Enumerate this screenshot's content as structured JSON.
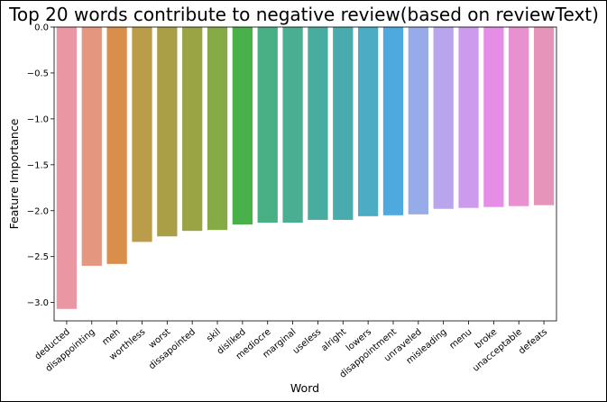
{
  "chart_data": {
    "type": "bar",
    "title": "Top 20 words contribute to negative review(based on reviewText)",
    "xlabel": "Word",
    "ylabel": "Feature Importance",
    "ylim": [
      -3.2,
      0.0
    ],
    "yticks": [
      0.0,
      -0.5,
      -1.0,
      -1.5,
      -2.0,
      -2.5,
      -3.0
    ],
    "ytick_labels": [
      "0.0",
      "−0.5",
      "−1.0",
      "−1.5",
      "−2.0",
      "−2.5",
      "−3.0"
    ],
    "grid": false,
    "categories": [
      "deducted",
      "disappointing",
      "meh",
      "worthless",
      "worst",
      "dissapointed",
      "skil",
      "disliked",
      "mediocre",
      "marginal",
      "useless",
      "alright",
      "lowers",
      "disappointment",
      "unraveled",
      "misleading",
      "menu",
      "broke",
      "unacceptable",
      "defeats"
    ],
    "values": [
      -3.07,
      -2.6,
      -2.58,
      -2.34,
      -2.28,
      -2.22,
      -2.21,
      -2.15,
      -2.13,
      -2.13,
      -2.1,
      -2.1,
      -2.06,
      -2.05,
      -2.04,
      -1.98,
      -1.97,
      -1.96,
      -1.95,
      -1.94
    ],
    "colors": [
      "#ea96a3",
      "#e5967e",
      "#d98f4b",
      "#bb9c49",
      "#aa9e46",
      "#9aa445",
      "#86aa45",
      "#4ab14a",
      "#49af84",
      "#4aae93",
      "#48ac9f",
      "#4aabae",
      "#4bacc4",
      "#4ea9df",
      "#96abe7",
      "#b9a5ee",
      "#cd9bee",
      "#e58de7",
      "#e890d0",
      "#e794bb"
    ]
  }
}
